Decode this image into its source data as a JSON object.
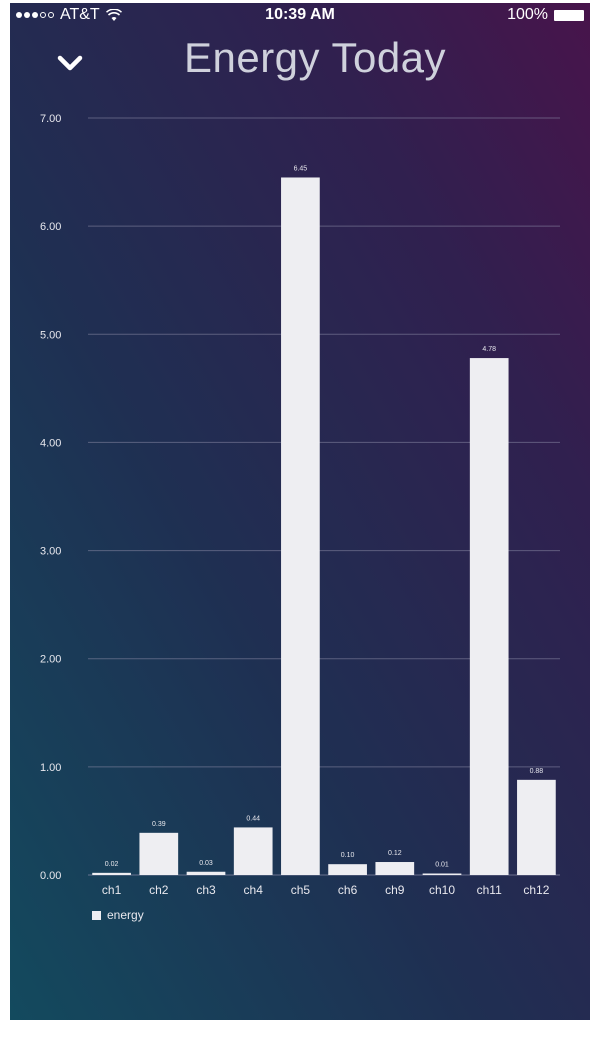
{
  "status_bar": {
    "carrier": "AT&T",
    "time": "10:39 AM",
    "battery": "100%"
  },
  "header": {
    "title": "Energy Today"
  },
  "icons": {
    "back": "chevron-down-icon",
    "wifi": "wifi-icon",
    "battery": "battery-icon"
  },
  "colors": {
    "bar": "#eeeef2",
    "grid": "#8a8aa6",
    "text": "#e8e8ee"
  },
  "chart_data": {
    "type": "bar",
    "categories": [
      "ch1",
      "ch2",
      "ch3",
      "ch4",
      "ch5",
      "ch6",
      "ch9",
      "ch10",
      "ch11",
      "ch12"
    ],
    "series": [
      {
        "name": "energy",
        "values": [
          0.02,
          0.39,
          0.03,
          0.44,
          6.45,
          0.1,
          0.12,
          0.01,
          4.78,
          0.88
        ],
        "labels": [
          "0.02",
          "0.39",
          "0.03",
          "0.44",
          "6.45",
          "0.10",
          "0.12",
          "0.01",
          "4.78",
          "0.88"
        ]
      }
    ],
    "ylim": [
      0,
      7
    ],
    "yticks": [
      "0.00",
      "1.00",
      "2.00",
      "3.00",
      "4.00",
      "5.00",
      "6.00",
      "7.00"
    ],
    "grid": true,
    "legend_position": "bottom-left"
  }
}
